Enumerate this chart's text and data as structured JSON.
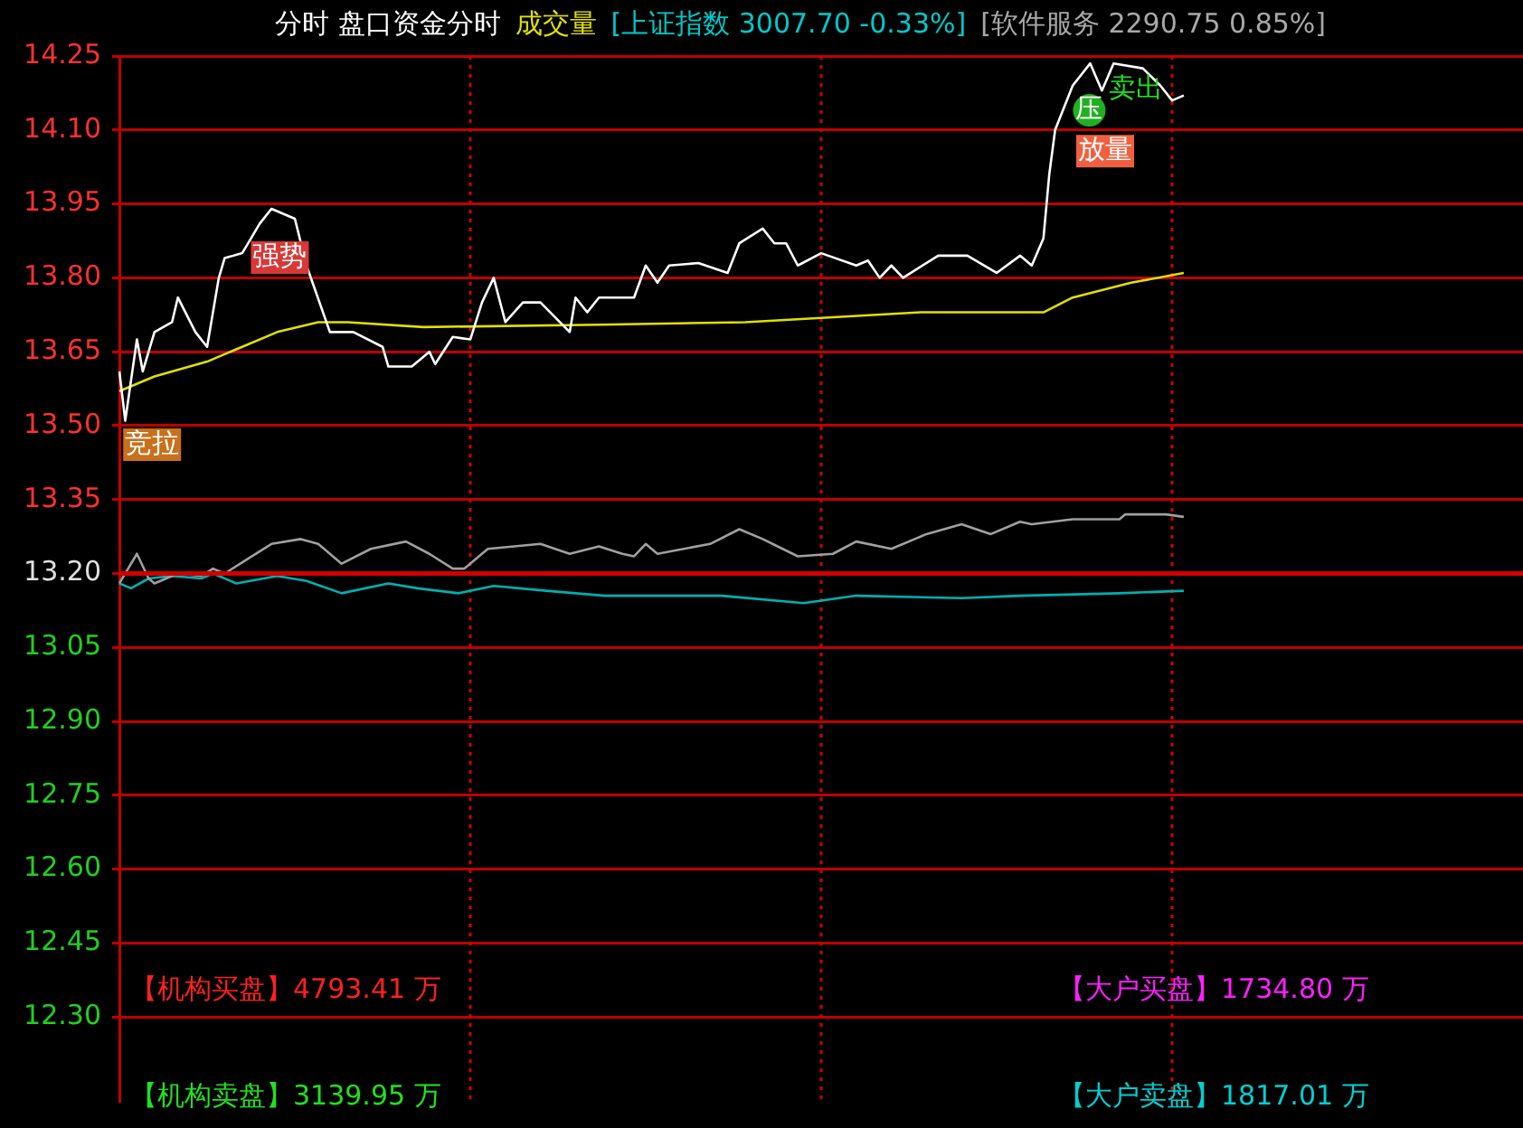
{
  "chart_data": {
    "type": "line",
    "categories": [
      null,
      null,
      null,
      null,
      null,
      null,
      null,
      null,
      null,
      null,
      null,
      null,
      null,
      null,
      null,
      null,
      null,
      null,
      null,
      null,
      null,
      null,
      null,
      null,
      null,
      null,
      null,
      null,
      null,
      null,
      null,
      null,
      null,
      null,
      null,
      null,
      null,
      null,
      null,
      null,
      null,
      null,
      null,
      null,
      null,
      null,
      null,
      null,
      null,
      null,
      null,
      null,
      null,
      null,
      null,
      null,
      null,
      null,
      null,
      null,
      null,
      null,
      null,
      null,
      null,
      null,
      null,
      null,
      null,
      null,
      null,
      null,
      null,
      null,
      null,
      null,
      null,
      null,
      null,
      null,
      null,
      null,
      null,
      null,
      null,
      null,
      null,
      null,
      null,
      null,
      null,
      null,
      null,
      null,
      null,
      null,
      null,
      null,
      null,
      null,
      null,
      null,
      null,
      null,
      null,
      null,
      null,
      null,
      null,
      null,
      null,
      null,
      null,
      null,
      null,
      null,
      null,
      null,
      null,
      null,
      null,
      null,
      null,
      null,
      null,
      null,
      null,
      null,
      null,
      null,
      null,
      null,
      null,
      null,
      null,
      null,
      null,
      null,
      null,
      null,
      null,
      null,
      null,
      null,
      null,
      null,
      null,
      null,
      null,
      null,
      null,
      null,
      null,
      null,
      null,
      null,
      null,
      null,
      null,
      null,
      null,
      null,
      null,
      null,
      null,
      null,
      null,
      null,
      null,
      null,
      null,
      null,
      null,
      null,
      null,
      null,
      null,
      null,
      null,
      null,
      null,
      null,
      null,
      null,
      null,
      null,
      null,
      null,
      null,
      null,
      null,
      null,
      null,
      null,
      null,
      null,
      null,
      null,
      null,
      null,
      null,
      null,
      null,
      null,
      null,
      null,
      null,
      null,
      null,
      null,
      null,
      null,
      null,
      null,
      null,
      null,
      null,
      null,
      null,
      null,
      null,
      null,
      null,
      null,
      null,
      null,
      null,
      null,
      null,
      null,
      null,
      null,
      null,
      null,
      null,
      null,
      null,
      null,
      null,
      null,
      null
    ],
    "ylim": [
      12.13,
      14.25
    ],
    "yticks": [
      {
        "value": 14.25,
        "label": "14.25"
      },
      {
        "value": 14.1,
        "label": "14.10"
      },
      {
        "value": 13.95,
        "label": "13.95"
      },
      {
        "value": 13.8,
        "label": "13.80"
      },
      {
        "value": 13.65,
        "label": "13.65"
      },
      {
        "value": 13.5,
        "label": "13.50"
      },
      {
        "value": 13.35,
        "label": "13.35"
      },
      {
        "value": 13.2,
        "label": "13.20"
      },
      {
        "value": 13.05,
        "label": "13.05"
      },
      {
        "value": 12.9,
        "label": "12.90"
      },
      {
        "value": 12.75,
        "label": "12.75"
      },
      {
        "value": 12.6,
        "label": "12.60"
      },
      {
        "value": 12.45,
        "label": "12.45"
      },
      {
        "value": 12.3,
        "label": "12.30"
      }
    ],
    "tick_labels": "y",
    "grid": "y",
    "legend": false,
    "marker": "none",
    "line_style": "solid",
    "ref_lines": [
      {
        "axis": "y",
        "value": 13.2,
        "color": "#d00000"
      }
    ],
    "series": [
      {
        "color": "#ffffff",
        "values": [
          13.61,
          13.51,
          null,
          13.675,
          13.61,
          null,
          13.69,
          null,
          null,
          13.71,
          13.76,
          null,
          null,
          13.69,
          null,
          13.66,
          null,
          13.8,
          13.84,
          null,
          null,
          13.85,
          null,
          null,
          13.91,
          null,
          13.94,
          null,
          null,
          null,
          13.92,
          null,
          13.825,
          null,
          null,
          null,
          13.69,
          null,
          null,
          null,
          13.69,
          null,
          null,
          null,
          null,
          13.66,
          13.62,
          null,
          null,
          null,
          13.62,
          null,
          null,
          13.65,
          13.625,
          null,
          null,
          13.68,
          null,
          null,
          13.675,
          null,
          13.75,
          null,
          13.8,
          null,
          13.71,
          null,
          null,
          13.75,
          null,
          null,
          13.75,
          null,
          null,
          null,
          null,
          13.69,
          13.76,
          null,
          13.73,
          null,
          13.76,
          null,
          null,
          null,
          null,
          null,
          13.76,
          null,
          13.825,
          null,
          13.79,
          null,
          13.825,
          null,
          null,
          null,
          null,
          13.83,
          null,
          null,
          null,
          null,
          13.81,
          null,
          13.87,
          null,
          null,
          null,
          13.9,
          null,
          13.87,
          null,
          13.87,
          null,
          13.825,
          null,
          null,
          null,
          13.85,
          null,
          null,
          null,
          null,
          null,
          13.825,
          null,
          13.835,
          null,
          13.8,
          null,
          13.825,
          null,
          13.8,
          null,
          null,
          null,
          null,
          null,
          13.845,
          null,
          null,
          null,
          null,
          13.845,
          null,
          null,
          null,
          null,
          13.81,
          null,
          null,
          null,
          13.845,
          null,
          13.825,
          null,
          13.88,
          14.01,
          14.1,
          null,
          null,
          14.19,
          null,
          null,
          14.235,
          null,
          14.18,
          null,
          14.235,
          null,
          null,
          null,
          null,
          14.225,
          null,
          null,
          14.19,
          null,
          14.16,
          null,
          14.17,
          null,
          null,
          null,
          null,
          null,
          null,
          null,
          null,
          null,
          null,
          null,
          null,
          null,
          null,
          null,
          null,
          null,
          null,
          null,
          null,
          null,
          null,
          null,
          null,
          null,
          null,
          null,
          null,
          null,
          null,
          null,
          null,
          null,
          null,
          null,
          null,
          null,
          null,
          null,
          null,
          null,
          null,
          null,
          null,
          null,
          null,
          null,
          null,
          null,
          null,
          null,
          null,
          null,
          null,
          null,
          null,
          null,
          null
        ]
      },
      {
        "color": "#e0e000",
        "values": [
          13.57,
          null,
          null,
          null,
          null,
          null,
          13.6,
          null,
          null,
          null,
          null,
          null,
          null,
          null,
          null,
          13.63,
          null,
          null,
          null,
          null,
          null,
          13.66,
          null,
          null,
          null,
          null,
          null,
          13.69,
          null,
          null,
          null,
          null,
          null,
          null,
          13.71,
          null,
          null,
          null,
          null,
          13.71,
          null,
          null,
          null,
          null,
          null,
          null,
          null,
          null,
          null,
          null,
          null,
          null,
          13.7,
          null,
          null,
          null,
          null,
          null,
          null,
          null,
          null,
          null,
          null,
          null,
          null,
          null,
          null,
          null,
          null,
          null,
          null,
          null,
          null,
          null,
          null,
          null,
          null,
          null,
          null,
          null,
          null,
          null,
          13.705,
          null,
          null,
          null,
          null,
          null,
          null,
          null,
          null,
          null,
          null,
          null,
          null,
          null,
          null,
          null,
          null,
          null,
          null,
          null,
          null,
          null,
          null,
          null,
          null,
          13.71,
          null,
          null,
          null,
          null,
          null,
          null,
          null,
          null,
          null,
          null,
          null,
          null,
          null,
          null,
          null,
          null,
          null,
          null,
          null,
          null,
          null,
          null,
          null,
          null,
          null,
          null,
          null,
          null,
          null,
          13.73,
          null,
          null,
          null,
          null,
          null,
          null,
          null,
          null,
          null,
          null,
          null,
          null,
          null,
          null,
          null,
          null,
          null,
          null,
          null,
          null,
          13.73,
          null,
          null,
          null,
          null,
          13.76,
          null,
          null,
          null,
          null,
          null,
          null,
          null,
          null,
          null,
          13.79,
          null,
          null,
          null,
          null,
          null,
          null,
          null,
          null,
          13.81,
          null,
          null,
          null,
          null,
          null,
          null,
          null,
          null,
          null,
          null,
          null,
          null,
          null,
          null,
          null,
          null,
          null,
          null,
          null,
          null,
          null,
          null,
          null,
          null,
          null,
          null,
          null,
          null,
          null,
          null,
          null,
          null,
          null,
          null,
          null,
          null,
          null,
          null,
          null,
          null,
          null,
          null,
          null,
          null,
          null,
          null,
          null,
          null,
          null,
          null,
          null,
          null,
          null,
          null,
          null,
          null,
          null,
          null
        ]
      },
      {
        "color": "#a0a0a0",
        "values": [
          13.18,
          null,
          null,
          13.24,
          null,
          13.19,
          13.18,
          null,
          null,
          null,
          13.2,
          null,
          null,
          null,
          13.195,
          null,
          13.21,
          null,
          13.2,
          null,
          null,
          null,
          13.23,
          null,
          null,
          null,
          13.26,
          null,
          null,
          null,
          null,
          13.27,
          null,
          null,
          13.26,
          null,
          null,
          null,
          13.22,
          null,
          null,
          null,
          null,
          13.25,
          null,
          null,
          null,
          null,
          null,
          13.265,
          null,
          null,
          null,
          13.24,
          null,
          null,
          null,
          13.21,
          null,
          13.21,
          null,
          null,
          null,
          13.25,
          null,
          null,
          null,
          null,
          null,
          null,
          null,
          null,
          13.26,
          null,
          null,
          null,
          null,
          13.24,
          null,
          null,
          null,
          null,
          13.255,
          null,
          null,
          null,
          13.24,
          null,
          13.235,
          null,
          13.26,
          null,
          13.24,
          null,
          null,
          null,
          null,
          null,
          null,
          null,
          null,
          13.26,
          null,
          null,
          null,
          null,
          13.29,
          null,
          null,
          null,
          13.27,
          null,
          null,
          null,
          null,
          null,
          13.235,
          null,
          null,
          null,
          null,
          null,
          13.24,
          null,
          null,
          null,
          13.265,
          null,
          null,
          null,
          null,
          null,
          13.25,
          null,
          null,
          null,
          null,
          null,
          13.28,
          null,
          null,
          null,
          null,
          null,
          13.3,
          null,
          null,
          null,
          null,
          13.28,
          null,
          null,
          null,
          null,
          13.305,
          null,
          13.3,
          null,
          null,
          null,
          null,
          null,
          null,
          13.31,
          null,
          null,
          null,
          null,
          null,
          null,
          null,
          13.31,
          13.32,
          null,
          null,
          null,
          null,
          null,
          null,
          13.32,
          null,
          null,
          13.315,
          null,
          null,
          null,
          null,
          null,
          null,
          null,
          null,
          null,
          null,
          null,
          null,
          null,
          null,
          null,
          null,
          null,
          null,
          null,
          null,
          null,
          null,
          null,
          null,
          null,
          null,
          null,
          null,
          null,
          null,
          null,
          null,
          null,
          null,
          null,
          null,
          null,
          null,
          null,
          null,
          null,
          null,
          null,
          null,
          null,
          null,
          null,
          null,
          null,
          null,
          null,
          null,
          null,
          null,
          null,
          null,
          null,
          null
        ]
      },
      {
        "color": "#00b0b0",
        "values": [
          13.18,
          null,
          13.17,
          null,
          null,
          13.19,
          null,
          null,
          null,
          13.195,
          null,
          null,
          null,
          null,
          13.19,
          null,
          13.2,
          null,
          null,
          null,
          13.18,
          null,
          null,
          null,
          null,
          null,
          null,
          13.195,
          null,
          null,
          null,
          null,
          13.185,
          null,
          null,
          null,
          null,
          null,
          13.16,
          null,
          null,
          null,
          null,
          null,
          null,
          null,
          13.18,
          null,
          null,
          null,
          null,
          13.17,
          null,
          null,
          null,
          null,
          null,
          null,
          13.16,
          null,
          null,
          null,
          null,
          null,
          13.175,
          null,
          null,
          null,
          null,
          null,
          null,
          null,
          null,
          13.165,
          null,
          null,
          null,
          null,
          null,
          null,
          null,
          null,
          null,
          13.155,
          null,
          null,
          null,
          null,
          null,
          null,
          null,
          null,
          null,
          13.155,
          null,
          null,
          null,
          null,
          null,
          null,
          null,
          null,
          null,
          13.155,
          null,
          null,
          null,
          null,
          null,
          null,
          null,
          null,
          null,
          null,
          null,
          null,
          null,
          13.14,
          null,
          null,
          null,
          null,
          null,
          null,
          null,
          null,
          13.155,
          null,
          null,
          null,
          null,
          null,
          null,
          null,
          null,
          null,
          null,
          null,
          null,
          null,
          null,
          null,
          null,
          null,
          13.15,
          null,
          null,
          null,
          null,
          null,
          null,
          null,
          null,
          null,
          13.155,
          null,
          null,
          null,
          null,
          null,
          null,
          null,
          null,
          null,
          null,
          null,
          null,
          null,
          null,
          null,
          null,
          13.16,
          null,
          null,
          null,
          null,
          null,
          null,
          null,
          null,
          null,
          null,
          13.165,
          null,
          null,
          null,
          null,
          null,
          null,
          null,
          null,
          null,
          null,
          null,
          null,
          null,
          null,
          null,
          null,
          null,
          null,
          null,
          null,
          null,
          null,
          null,
          null,
          null,
          null,
          null,
          null,
          null,
          null,
          null,
          null,
          null,
          null,
          null,
          null,
          null,
          null,
          null,
          null,
          null,
          null,
          null,
          null,
          null,
          null,
          null,
          null,
          null,
          null,
          null,
          null,
          null,
          null,
          null,
          null,
          null,
          null
        ]
      }
    ],
    "annotations": [
      "竞拉",
      "强势",
      "压",
      "卖出",
      "放量",
      "分时 盘口资金分时",
      "成交量",
      "[上证指数 3007.70 -0.33%]",
      "[软件服务 2290.75 0.85%]",
      "【机构买盘】4793.41 万",
      "【大户买盘】1734.80 万",
      "【机构卖盘】3139.95 万",
      "【大户卖盘】1817.01 万"
    ]
  }
}
